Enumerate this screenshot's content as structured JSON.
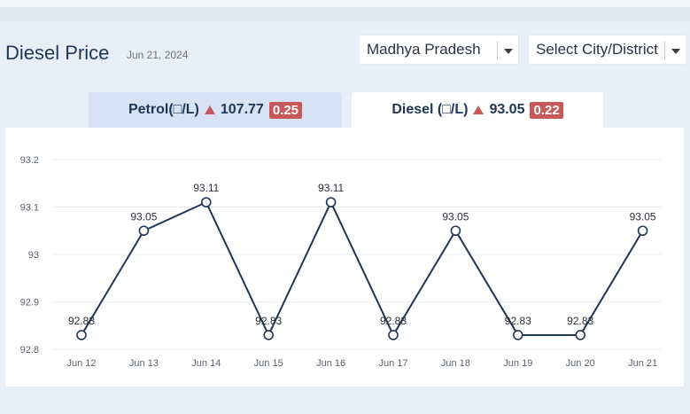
{
  "header": {
    "title": "Diesel Price",
    "date": "Jun 21, 2024"
  },
  "filters": {
    "state": "Madhya Pradesh",
    "city": "Select City/District"
  },
  "tabs": [
    {
      "fuel": "Petrol(□/L)",
      "price": "107.77",
      "change": "0.25",
      "trend": "up",
      "active": false
    },
    {
      "fuel": "Diesel (□/L)",
      "price": "93.05",
      "change": "0.22",
      "trend": "up",
      "active": true
    }
  ],
  "colors": {
    "line": "#1f3656",
    "badge": "#c8595a",
    "grid": "#e9ecf1"
  },
  "chart_data": {
    "type": "line",
    "categories": [
      "Jun 12",
      "Jun 13",
      "Jun 14",
      "Jun 15",
      "Jun 16",
      "Jun 17",
      "Jun 18",
      "Jun 19",
      "Jun 20",
      "Jun 21"
    ],
    "values": [
      92.83,
      93.05,
      93.11,
      92.83,
      93.11,
      92.83,
      93.05,
      92.83,
      92.83,
      93.05
    ],
    "value_labels": [
      "92.83",
      "93.05",
      "93.11",
      "92.83",
      "93.11",
      "92.83",
      "93.05",
      "92.83",
      "92.83",
      "93.05"
    ],
    "yticks": [
      "93.2",
      "93.1",
      "93",
      "92.9",
      "92.8"
    ],
    "ylim": [
      92.8,
      93.2
    ],
    "grid": true,
    "title": "",
    "xlabel": "",
    "ylabel": ""
  }
}
